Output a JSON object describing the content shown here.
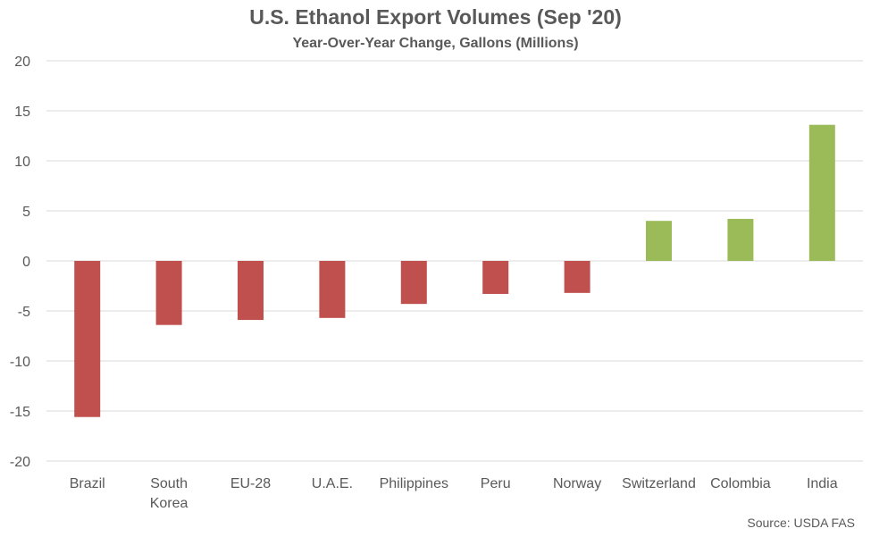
{
  "chart_data": {
    "type": "bar",
    "title": "U.S. Ethanol Export Volumes (Sep '20)",
    "subtitle": "Year-Over-Year Change, Gallons (Millions)",
    "categories": [
      "Brazil",
      "South Korea",
      "EU-28",
      "U.A.E.",
      "Philippines",
      "Peru",
      "Norway",
      "Switzerland",
      "Colombia",
      "India"
    ],
    "category_lines": [
      [
        "Brazil"
      ],
      [
        "South",
        "Korea"
      ],
      [
        "EU-28"
      ],
      [
        "U.A.E."
      ],
      [
        "Philippines"
      ],
      [
        "Peru"
      ],
      [
        "Norway"
      ],
      [
        "Switzerland"
      ],
      [
        "Colombia"
      ],
      [
        "India"
      ]
    ],
    "values": [
      -15.6,
      -6.4,
      -5.9,
      -5.7,
      -4.3,
      -3.3,
      -3.2,
      4.0,
      4.2,
      13.6
    ],
    "ylim": [
      -20,
      20
    ],
    "yticks": [
      20,
      15,
      10,
      5,
      0,
      -5,
      -10,
      -15,
      -20
    ],
    "grid": true,
    "colors": {
      "negative": "#C0504D",
      "positive": "#9BBB59",
      "grid": "#D9D9D9",
      "text": "#595959"
    },
    "source": "Source: USDA FAS"
  }
}
